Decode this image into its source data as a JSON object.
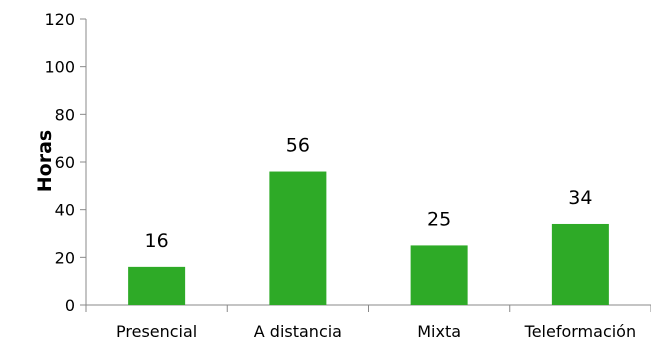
{
  "chart_data": {
    "type": "bar",
    "categories": [
      "Presencial",
      "A distancia",
      "Mixta",
      "Teleformación"
    ],
    "values": [
      16,
      56,
      25,
      34
    ],
    "title": "",
    "xlabel": "",
    "ylabel": "Horas",
    "ylim": [
      0,
      120
    ],
    "yticks": [
      0,
      20,
      40,
      60,
      80,
      100,
      120
    ],
    "grid": false,
    "legend": "none",
    "bar_color": "#2eaa27",
    "axis_color": "#888888"
  }
}
